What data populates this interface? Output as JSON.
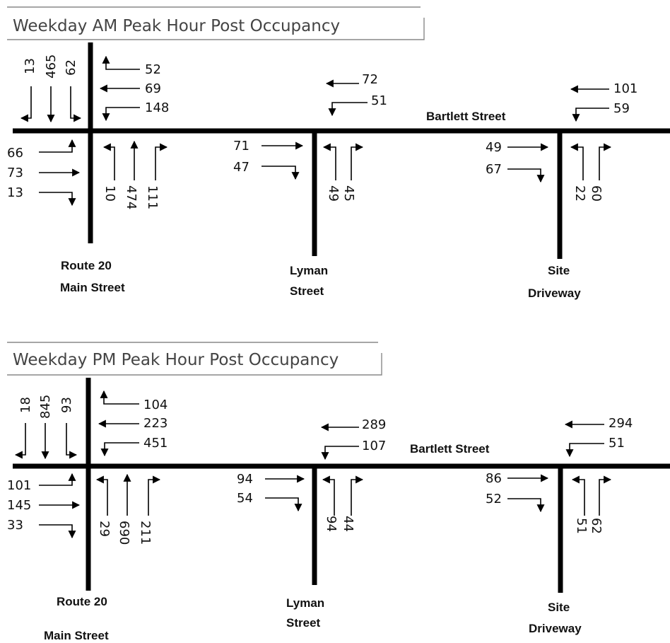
{
  "panels": [
    {
      "title": "Weekday AM Peak Hour Post Occupancy",
      "streets": {
        "east_west": "Bartlett Street",
        "west_1": "Route 20",
        "west_2": "Main Street",
        "middle_1": "Lyman",
        "middle_2": "Street",
        "east_1": "Site",
        "east_2": "Driveway"
      },
      "route20": {
        "sb_left": "13",
        "sb_thru": "465",
        "sb_right": "62",
        "wb_right": "52",
        "wb_thru": "69",
        "wb_left": "148",
        "eb_left": "66",
        "eb_thru": "73",
        "eb_right": "13",
        "nb_left": "10",
        "nb_thru": "474",
        "nb_right": "111"
      },
      "lyman": {
        "wb_thru": "72",
        "wb_left": "51",
        "eb_thru": "71",
        "eb_right": "47",
        "nb_left": "49",
        "nb_right": "45"
      },
      "site": {
        "wb_thru": "101",
        "wb_left": "59",
        "eb_thru": "49",
        "eb_right": "67",
        "nb_left": "22",
        "nb_right": "60"
      }
    },
    {
      "title": "Weekday PM Peak Hour Post Occupancy",
      "streets": {
        "east_west": "Bartlett Street",
        "west_1": "Route 20",
        "west_2": "Main Street",
        "middle_1": "Lyman",
        "middle_2": "Street",
        "east_1": "Site",
        "east_2": "Driveway"
      },
      "route20": {
        "sb_left": "18",
        "sb_thru": "845",
        "sb_right": "93",
        "wb_right": "104",
        "wb_thru": "223",
        "wb_left": "451",
        "eb_left": "101",
        "eb_thru": "145",
        "eb_right": "33",
        "nb_left": "29",
        "nb_thru": "690",
        "nb_right": "211"
      },
      "lyman": {
        "wb_thru": "289",
        "wb_left": "107",
        "eb_thru": "94",
        "eb_right": "54",
        "nb_left": "94",
        "nb_right": "44"
      },
      "site": {
        "wb_thru": "294",
        "wb_left": "51",
        "eb_thru": "86",
        "eb_right": "52",
        "nb_left": "51",
        "nb_right": "62"
      }
    }
  ]
}
